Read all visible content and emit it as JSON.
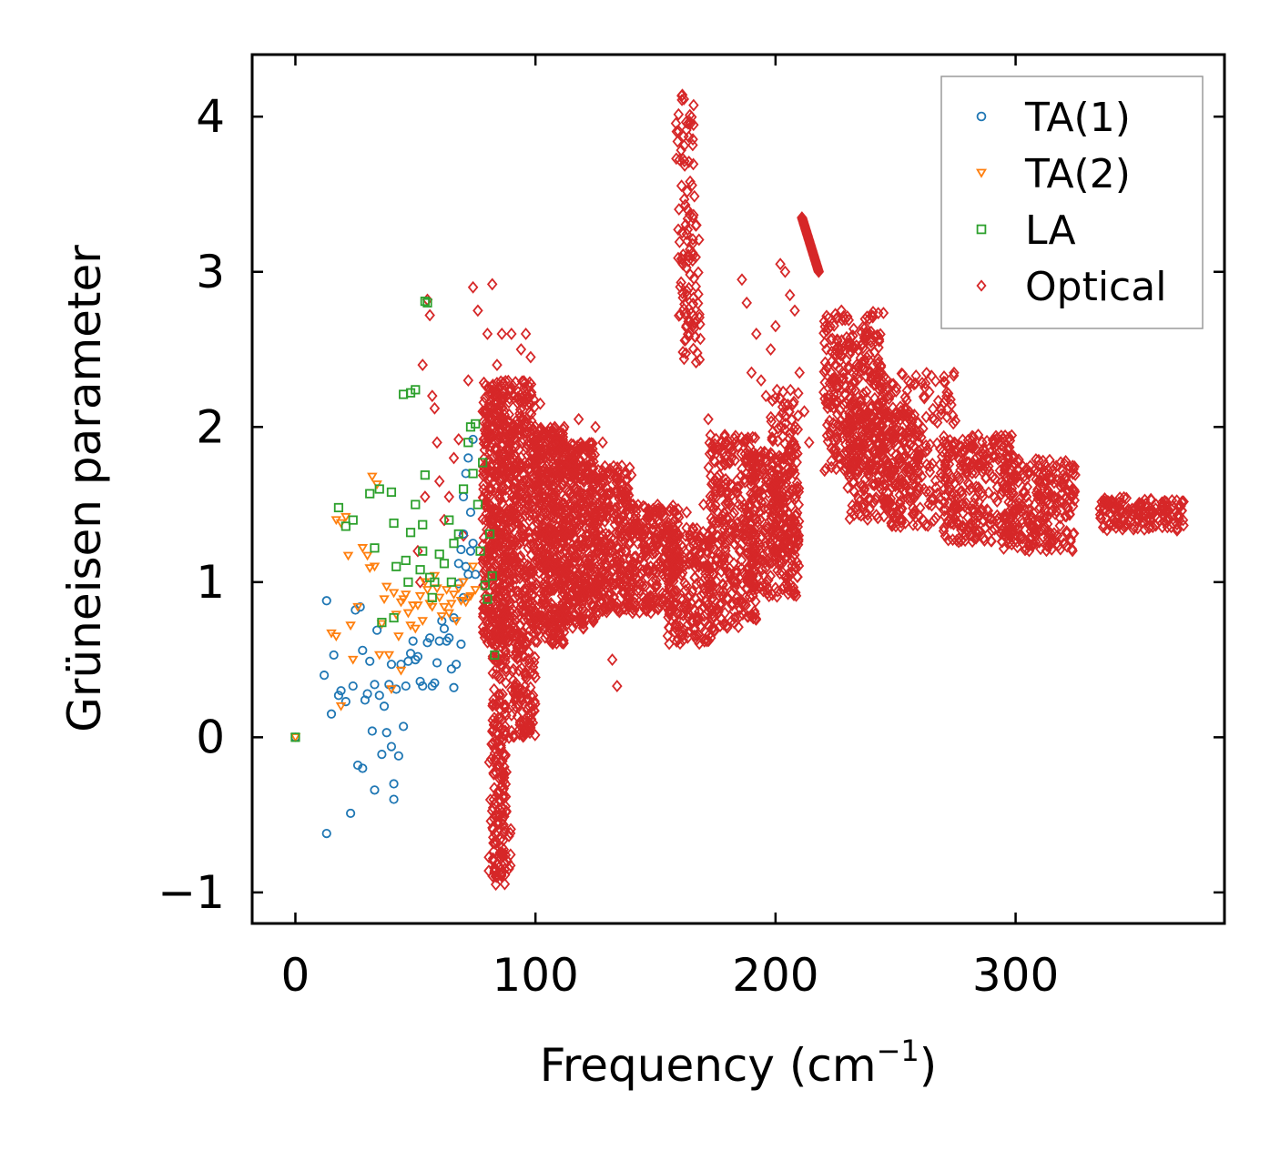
{
  "chart_data": {
    "type": "scatter",
    "title": "",
    "xlabel": "Frequency (cm",
    "xlabel_sup": "−1",
    "xlabel_tail": ")",
    "ylabel": "Grüneisen parameter",
    "xlim": [
      -18,
      387
    ],
    "ylim": [
      -1.2,
      4.4
    ],
    "xticks": [
      0,
      100,
      200,
      300
    ],
    "xtick_labels": [
      "0",
      "100",
      "200",
      "300"
    ],
    "yticks": [
      -1,
      0,
      1,
      2,
      3,
      4
    ],
    "ytick_labels": [
      "−1",
      "0",
      "1",
      "2",
      "3",
      "4"
    ],
    "grid": false,
    "legend_position": "top-right",
    "series": [
      {
        "name": "TA(1)",
        "marker": "circle",
        "color": "#1f77b4",
        "points": [
          [
            0,
            0
          ],
          [
            13,
            -0.62
          ],
          [
            13,
            0.88
          ],
          [
            12,
            0.4
          ],
          [
            15,
            0.15
          ],
          [
            16,
            0.53
          ],
          [
            18,
            0.27
          ],
          [
            19,
            0.3
          ],
          [
            21,
            0.23
          ],
          [
            23,
            -0.49
          ],
          [
            24,
            0.33
          ],
          [
            25,
            0.82
          ],
          [
            26,
            -0.18
          ],
          [
            27,
            0.84
          ],
          [
            28,
            -0.2
          ],
          [
            28,
            0.56
          ],
          [
            29,
            0.24
          ],
          [
            30,
            0.28
          ],
          [
            31,
            0.49
          ],
          [
            32,
            0.04
          ],
          [
            33,
            -0.34
          ],
          [
            33,
            0.34
          ],
          [
            34,
            0.69
          ],
          [
            35,
            0.27
          ],
          [
            36,
            -0.11
          ],
          [
            37,
            0.2
          ],
          [
            38,
            0.03
          ],
          [
            39,
            0.34
          ],
          [
            40,
            0.47
          ],
          [
            40,
            -0.06
          ],
          [
            41,
            -0.3
          ],
          [
            41,
            -0.4
          ],
          [
            42,
            0.31
          ],
          [
            43,
            -0.12
          ],
          [
            44,
            0.47
          ],
          [
            45,
            0.07
          ],
          [
            46,
            0.33
          ],
          [
            47,
            0.49
          ],
          [
            48,
            0.54
          ],
          [
            49,
            0.62
          ],
          [
            50,
            0.5
          ],
          [
            51,
            0.52
          ],
          [
            52,
            0.36
          ],
          [
            53,
            0.33
          ],
          [
            55,
            0.61
          ],
          [
            56,
            0.64
          ],
          [
            57,
            0.33
          ],
          [
            58,
            0.35
          ],
          [
            59,
            0.48
          ],
          [
            60,
            0.62
          ],
          [
            61,
            0.75
          ],
          [
            62,
            0.7
          ],
          [
            63,
            0.62
          ],
          [
            64,
            0.64
          ],
          [
            65,
            0.44
          ],
          [
            66,
            0.32
          ],
          [
            66,
            0.77
          ],
          [
            67,
            0.47
          ],
          [
            68,
            0.99
          ],
          [
            68,
            1.12
          ],
          [
            69,
            1.21
          ],
          [
            69,
            0.6
          ],
          [
            70,
            1.31
          ],
          [
            70,
            0.9
          ],
          [
            70,
            1.55
          ],
          [
            71,
            1.1
          ],
          [
            71,
            1.7
          ],
          [
            72,
            1.05
          ],
          [
            72,
            1.8
          ],
          [
            73,
            1.45
          ],
          [
            73,
            1.2
          ],
          [
            74,
            1.25
          ],
          [
            74,
            1.92
          ],
          [
            75,
            1.05
          ]
        ]
      },
      {
        "name": "TA(2)",
        "marker": "triangle-down",
        "color": "#ff7f0e",
        "points": [
          [
            0,
            0
          ],
          [
            15,
            0.67
          ],
          [
            17,
            0.65
          ],
          [
            17,
            1.4
          ],
          [
            19,
            1.38
          ],
          [
            19,
            0.2
          ],
          [
            21,
            1.42
          ],
          [
            22,
            1.17
          ],
          [
            23,
            0.72
          ],
          [
            24,
            0.5
          ],
          [
            26,
            0.84
          ],
          [
            28,
            1.22
          ],
          [
            30,
            1.17
          ],
          [
            31,
            1.09
          ],
          [
            32,
            1.68
          ],
          [
            33,
            1.1
          ],
          [
            34,
            1.63
          ],
          [
            35,
            0.53
          ],
          [
            36,
            0.73
          ],
          [
            37,
            0.89
          ],
          [
            38,
            0.97
          ],
          [
            39,
            0.53
          ],
          [
            40,
            0.31
          ],
          [
            41,
            0.93
          ],
          [
            42,
            0.79
          ],
          [
            43,
            0.65
          ],
          [
            44,
            0.43
          ],
          [
            44,
            0.87
          ],
          [
            45,
            0.89
          ],
          [
            46,
            0.92
          ],
          [
            47,
            0.8
          ],
          [
            48,
            0.72
          ],
          [
            49,
            0.85
          ],
          [
            50,
            0.7
          ],
          [
            51,
            0.85
          ],
          [
            52,
            0.91
          ],
          [
            53,
            0.75
          ],
          [
            54,
            1.0
          ],
          [
            55,
            0.95
          ],
          [
            56,
            0.86
          ],
          [
            57,
            0.84
          ],
          [
            58,
            1.04
          ],
          [
            59,
            0.96
          ],
          [
            60,
            0.9
          ],
          [
            61,
            0.78
          ],
          [
            62,
            0.84
          ],
          [
            63,
            0.95
          ],
          [
            64,
            0.8
          ],
          [
            65,
            0.86
          ],
          [
            66,
            0.92
          ],
          [
            67,
            0.75
          ],
          [
            68,
            0.96
          ],
          [
            69,
            0.88
          ],
          [
            70,
            1.0
          ],
          [
            71,
            0.87
          ],
          [
            72,
            0.9
          ],
          [
            73,
            0.91
          ],
          [
            74,
            1.1
          ],
          [
            75,
            0.95
          ]
        ]
      },
      {
        "name": "LA",
        "marker": "square",
        "color": "#2ca02c",
        "points": [
          [
            0,
            0
          ],
          [
            18,
            1.48
          ],
          [
            21,
            1.36
          ],
          [
            24,
            1.4
          ],
          [
            31,
            1.57
          ],
          [
            33,
            1.22
          ],
          [
            35,
            1.6
          ],
          [
            36,
            0.74
          ],
          [
            40,
            1.58
          ],
          [
            41,
            1.38
          ],
          [
            41,
            0.77
          ],
          [
            42,
            1.1
          ],
          [
            45,
            2.21
          ],
          [
            46,
            1.14
          ],
          [
            47,
            1.0
          ],
          [
            48,
            1.32
          ],
          [
            48,
            2.22
          ],
          [
            50,
            2.24
          ],
          [
            50,
            1.5
          ],
          [
            52,
            1.08
          ],
          [
            53,
            1.37
          ],
          [
            53,
            1.2
          ],
          [
            54,
            2.81
          ],
          [
            54,
            1.69
          ],
          [
            55,
            2.8
          ],
          [
            56,
            1.03
          ],
          [
            57,
            0.9
          ],
          [
            58,
            1.0
          ],
          [
            60,
            1.18
          ],
          [
            62,
            1.12
          ],
          [
            64,
            1.4
          ],
          [
            65,
            1.0
          ],
          [
            66,
            1.25
          ],
          [
            68,
            1.31
          ],
          [
            70,
            1.6
          ],
          [
            72,
            1.9
          ],
          [
            73,
            2.0
          ],
          [
            74,
            1.7
          ],
          [
            75,
            2.02
          ],
          [
            76,
            1.5
          ],
          [
            77,
            1.2
          ],
          [
            78,
            1.77
          ],
          [
            79,
            0.98
          ],
          [
            80,
            0.89
          ],
          [
            81,
            1.31
          ],
          [
            82,
            1.04
          ],
          [
            83,
            0.53
          ]
        ]
      },
      {
        "name": "Optical",
        "marker": "diamond",
        "color": "#d62728",
        "generated": true,
        "scatter_points": [
          [
            51,
            1.2
          ],
          [
            52,
            1.0
          ],
          [
            53,
            2.4
          ],
          [
            54,
            1.55
          ],
          [
            55,
            2.82
          ],
          [
            56,
            2.72
          ],
          [
            57,
            2.2
          ],
          [
            58,
            2.12
          ],
          [
            59,
            1.9
          ],
          [
            60,
            1.65
          ],
          [
            62,
            1.4
          ],
          [
            64,
            1.55
          ],
          [
            66,
            1.8
          ],
          [
            68,
            1.92
          ],
          [
            70,
            1.3
          ],
          [
            72,
            2.3
          ],
          [
            74,
            2.9
          ],
          [
            76,
            2.75
          ],
          [
            78,
            2.1
          ],
          [
            80,
            2.6
          ],
          [
            82,
            2.92
          ],
          [
            84,
            2.4
          ],
          [
            86,
            2.6
          ],
          [
            88,
            2.2
          ],
          [
            90,
            2.6
          ],
          [
            92,
            1.7
          ],
          [
            94,
            2.5
          ],
          [
            96,
            2.6
          ],
          [
            98,
            2.45
          ],
          [
            100,
            1.9
          ],
          [
            102,
            2.15
          ],
          [
            104,
            1.85
          ],
          [
            106,
            0.7
          ],
          [
            108,
            1.9
          ],
          [
            110,
            1.85
          ],
          [
            112,
            2.0
          ],
          [
            115,
            1.7
          ],
          [
            118,
            2.05
          ],
          [
            120,
            1.5
          ],
          [
            122,
            1.75
          ],
          [
            125,
            2.0
          ],
          [
            128,
            1.9
          ],
          [
            130,
            1.7
          ],
          [
            132,
            0.5
          ],
          [
            134,
            0.33
          ],
          [
            136,
            1.55
          ],
          [
            138,
            1.6
          ],
          [
            140,
            1.5
          ],
          [
            142,
            1.4
          ],
          [
            145,
            1.3
          ],
          [
            148,
            1.1
          ],
          [
            150,
            0.9
          ],
          [
            152,
            1.1
          ],
          [
            155,
            1.35
          ],
          [
            158,
            1.4
          ],
          [
            160,
            1.3
          ],
          [
            163,
            1.45
          ],
          [
            166,
            1.2
          ],
          [
            168,
            1.1
          ],
          [
            170,
            1.5
          ],
          [
            172,
            2.05
          ],
          [
            174,
            1.55
          ],
          [
            176,
            1.3
          ],
          [
            178,
            1.4
          ],
          [
            180,
            0.9
          ],
          [
            182,
            1.3
          ],
          [
            184,
            1.0
          ],
          [
            186,
            2.95
          ],
          [
            188,
            2.8
          ],
          [
            190,
            2.35
          ],
          [
            192,
            2.6
          ],
          [
            194,
            2.3
          ],
          [
            196,
            2.2
          ],
          [
            198,
            2.5
          ],
          [
            200,
            2.65
          ],
          [
            202,
            3.05
          ],
          [
            204,
            3.0
          ],
          [
            206,
            2.85
          ],
          [
            208,
            2.75
          ],
          [
            210,
            2.35
          ],
          [
            212,
            2.1
          ],
          [
            214,
            1.9
          ]
        ],
        "note": "dense clusters rendered by the drawing script"
      }
    ]
  }
}
